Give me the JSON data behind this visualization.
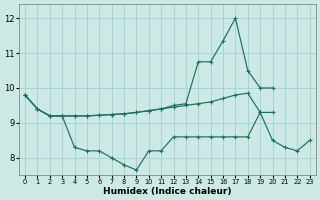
{
  "xlabel": "Humidex (Indice chaleur)",
  "background_color": "#cce9e5",
  "grid_color": "#aad4cf",
  "line_color": "#1e6e63",
  "ylim": [
    7.5,
    12.4
  ],
  "yticks": [
    8,
    9,
    10,
    11,
    12
  ],
  "xlim": [
    -0.5,
    23.5
  ],
  "xticks": [
    0,
    1,
    2,
    3,
    4,
    5,
    6,
    7,
    8,
    9,
    10,
    11,
    12,
    13,
    14,
    15,
    16,
    17,
    18,
    19,
    20,
    21,
    22,
    23
  ],
  "line1_x": [
    0,
    1,
    2,
    3,
    4,
    5,
    6,
    7,
    8,
    9,
    10,
    11,
    12,
    13,
    14,
    15,
    16,
    17,
    18,
    19,
    20,
    21,
    22,
    23
  ],
  "line1_y": [
    9.8,
    9.4,
    9.2,
    9.2,
    8.3,
    8.2,
    8.2,
    8.0,
    7.8,
    7.65,
    8.2,
    8.2,
    8.6,
    8.6,
    8.6,
    8.6,
    8.6,
    8.6,
    8.6,
    9.3,
    8.5,
    8.3,
    8.2,
    8.5
  ],
  "line2_x": [
    0,
    1,
    2,
    3,
    4,
    5,
    6,
    7,
    8,
    9,
    10,
    11,
    12,
    13,
    14,
    15,
    16,
    17,
    18,
    19,
    20
  ],
  "line2_y": [
    9.8,
    9.4,
    9.2,
    9.2,
    9.2,
    9.2,
    9.22,
    9.24,
    9.26,
    9.3,
    9.35,
    9.4,
    9.45,
    9.5,
    9.55,
    9.6,
    9.7,
    9.8,
    9.85,
    9.3,
    9.3
  ],
  "line3_x": [
    0,
    1,
    2,
    3,
    4,
    5,
    6,
    7,
    8,
    9,
    10,
    11,
    12,
    13,
    14,
    15,
    16,
    17,
    18,
    19,
    20
  ],
  "line3_y": [
    9.8,
    9.4,
    9.2,
    9.2,
    9.2,
    9.2,
    9.22,
    9.24,
    9.26,
    9.3,
    9.35,
    9.4,
    9.5,
    9.55,
    10.75,
    10.75,
    11.35,
    12.0,
    10.5,
    10.0,
    10.0
  ]
}
